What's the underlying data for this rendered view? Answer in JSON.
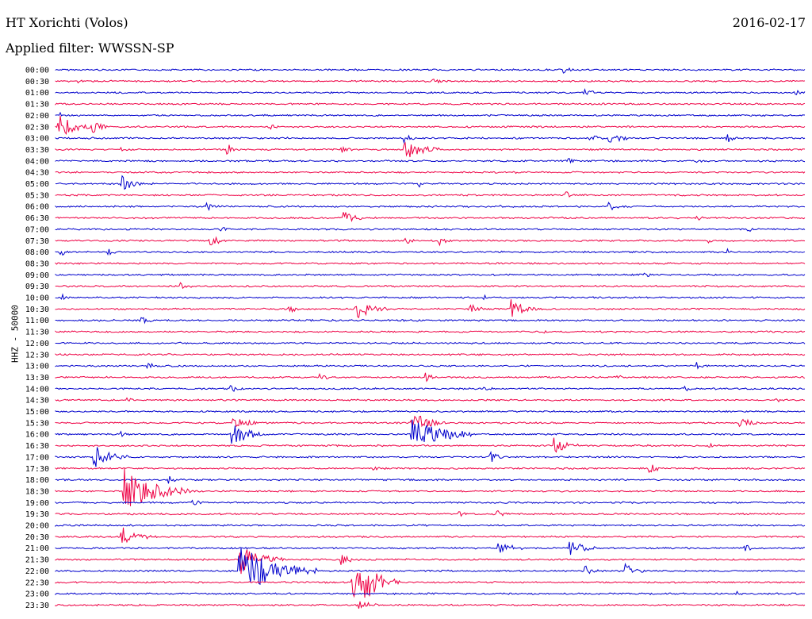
{
  "header": {
    "station": "HT Xorichti (Volos)",
    "date": "2016-02-17",
    "filter": "Applied filter: WWSSN-SP"
  },
  "axis_label": "HHZ - 50000",
  "colors": {
    "odd": "#0000cc",
    "even": "#ee0044"
  },
  "rows": [
    {
      "time": "00:00",
      "events": [
        [
          712,
          4
        ]
      ]
    },
    {
      "time": "00:30",
      "events": [
        [
          100,
          2
        ],
        [
          548,
          3
        ]
      ]
    },
    {
      "time": "01:00",
      "events": [
        [
          738,
          5
        ],
        [
          1005,
          4
        ]
      ]
    },
    {
      "time": "01:30",
      "events": []
    },
    {
      "time": "02:00",
      "events": [
        [
          78,
          3
        ]
      ]
    },
    {
      "time": "02:30",
      "events": [
        [
          75,
          14
        ],
        [
          118,
          9
        ],
        [
          340,
          4
        ]
      ]
    },
    {
      "time": "03:00",
      "events": [
        [
          512,
          5
        ],
        [
          745,
          6
        ],
        [
          770,
          8
        ],
        [
          918,
          5
        ]
      ]
    },
    {
      "time": "03:30",
      "events": [
        [
          155,
          3
        ],
        [
          288,
          6
        ],
        [
          432,
          4
        ],
        [
          512,
          14
        ]
      ]
    },
    {
      "time": "04:00",
      "events": [
        [
          718,
          4
        ],
        [
          880,
          3
        ]
      ]
    },
    {
      "time": "04:30",
      "events": [
        [
          648,
          2
        ]
      ]
    },
    {
      "time": "05:00",
      "events": [
        [
          155,
          9
        ],
        [
          530,
          3
        ]
      ]
    },
    {
      "time": "05:30",
      "events": [
        [
          715,
          4
        ]
      ]
    },
    {
      "time": "06:00",
      "events": [
        [
          262,
          5
        ],
        [
          630,
          3
        ],
        [
          770,
          5
        ]
      ]
    },
    {
      "time": "06:30",
      "events": [
        [
          435,
          8
        ],
        [
          880,
          3
        ]
      ]
    },
    {
      "time": "07:00",
      "events": [
        [
          280,
          3
        ],
        [
          945,
          3
        ]
      ]
    },
    {
      "time": "07:30",
      "events": [
        [
          265,
          8
        ],
        [
          510,
          5
        ],
        [
          555,
          5
        ],
        [
          895,
          3
        ]
      ]
    },
    {
      "time": "08:00",
      "events": [
        [
          78,
          4
        ],
        [
          137,
          4
        ],
        [
          918,
          3
        ]
      ]
    },
    {
      "time": "08:30",
      "events": []
    },
    {
      "time": "09:00",
      "events": [
        [
          815,
          3
        ]
      ]
    },
    {
      "time": "09:30",
      "events": [
        [
          230,
          5
        ]
      ]
    },
    {
      "time": "10:00",
      "events": [
        [
          80,
          3
        ],
        [
          610,
          3
        ]
      ]
    },
    {
      "time": "10:30",
      "events": [
        [
          450,
          13
        ],
        [
          592,
          7
        ],
        [
          645,
          12
        ],
        [
          365,
          5
        ]
      ]
    },
    {
      "time": "11:00",
      "events": [
        [
          178,
          5
        ]
      ]
    },
    {
      "time": "11:30",
      "events": [
        [
          685,
          2
        ]
      ]
    },
    {
      "time": "12:00",
      "events": []
    },
    {
      "time": "12:30",
      "events": []
    },
    {
      "time": "13:00",
      "events": [
        [
          188,
          4
        ],
        [
          880,
          4
        ]
      ]
    },
    {
      "time": "13:30",
      "events": [
        [
          405,
          4
        ],
        [
          538,
          5
        ],
        [
          780,
          3
        ]
      ]
    },
    {
      "time": "14:00",
      "events": [
        [
          293,
          4
        ],
        [
          612,
          3
        ],
        [
          865,
          3
        ]
      ]
    },
    {
      "time": "14:30",
      "events": [
        [
          160,
          4
        ],
        [
          980,
          3
        ]
      ]
    },
    {
      "time": "15:00",
      "events": []
    },
    {
      "time": "15:30",
      "events": [
        [
          295,
          10
        ],
        [
          520,
          14
        ],
        [
          933,
          8
        ]
      ]
    },
    {
      "time": "16:00",
      "events": [
        [
          155,
          3
        ],
        [
          292,
          15
        ],
        [
          520,
          25
        ]
      ]
    },
    {
      "time": "16:30",
      "events": [
        [
          700,
          10
        ],
        [
          895,
          3
        ]
      ]
    },
    {
      "time": "17:00",
      "events": [
        [
          120,
          14
        ],
        [
          620,
          6
        ]
      ]
    },
    {
      "time": "17:30",
      "events": [
        [
          473,
          3
        ],
        [
          820,
          6
        ]
      ]
    },
    {
      "time": "18:00",
      "events": [
        [
          215,
          4
        ]
      ]
    },
    {
      "time": "18:30",
      "events": [
        [
          158,
          28
        ]
      ]
    },
    {
      "time": "19:00",
      "events": [
        [
          245,
          4
        ]
      ]
    },
    {
      "time": "19:30",
      "events": [
        [
          580,
          4
        ],
        [
          628,
          4
        ]
      ]
    },
    {
      "time": "20:00",
      "events": []
    },
    {
      "time": "20:30",
      "events": [
        [
          155,
          12
        ]
      ]
    },
    {
      "time": "21:00",
      "events": [
        [
          630,
          10
        ],
        [
          720,
          11
        ],
        [
          940,
          5
        ]
      ]
    },
    {
      "time": "21:30",
      "events": [
        [
          303,
          18
        ],
        [
          432,
          7
        ]
      ]
    },
    {
      "time": "22:00",
      "events": [
        [
          303,
          32
        ],
        [
          740,
          6
        ],
        [
          790,
          8
        ]
      ]
    },
    {
      "time": "22:30",
      "events": [
        [
          445,
          18
        ],
        [
          462,
          14
        ]
      ]
    },
    {
      "time": "23:00",
      "events": [
        [
          928,
          3
        ]
      ]
    },
    {
      "time": "23:30",
      "events": [
        [
          455,
          7
        ]
      ]
    }
  ]
}
